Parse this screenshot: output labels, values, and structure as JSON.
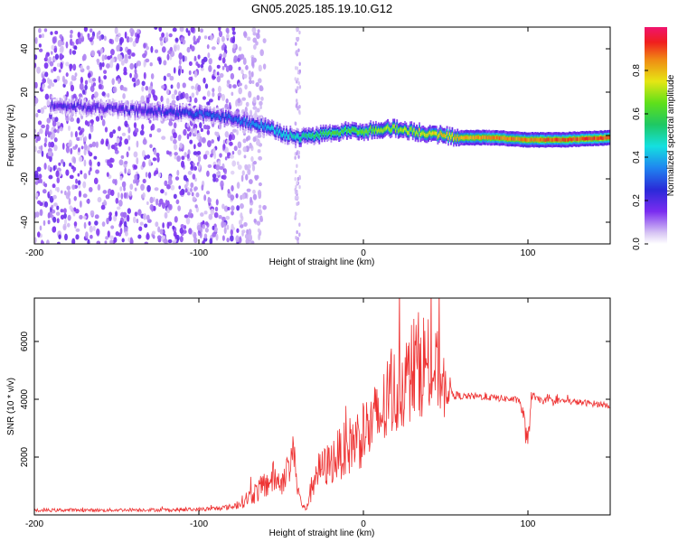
{
  "title": "GN05.2025.185.19.10.G12",
  "colors": {
    "snr_line": "#ee3333",
    "frame": "#000000"
  },
  "chart_data": [
    {
      "type": "heatmap",
      "xlabel": "Height of straight line (km)",
      "ylabel": "Frequency (Hz)",
      "xlim": [
        -200,
        150
      ],
      "ylim": [
        -50,
        50
      ],
      "x_ticks": [
        -200,
        -100,
        0,
        100
      ],
      "y_ticks": [
        -40,
        -20,
        0,
        20,
        40
      ],
      "x_tick_labels": [
        "-200",
        "-100",
        "0",
        "100"
      ],
      "y_tick_labels": [
        "-40",
        "-20",
        "0",
        "20",
        "40"
      ],
      "colorbar": {
        "label": "Normalized spectral amplitude",
        "range": [
          0,
          1
        ],
        "ticks": [
          0.0,
          0.2,
          0.4,
          0.6,
          0.8
        ],
        "tick_labels": [
          "0.0",
          "0.2",
          "0.4",
          "0.6",
          "0.8"
        ]
      },
      "ridge": {
        "description_points_x": [
          -185,
          -150,
          -120,
          -100,
          -80,
          -70,
          -60,
          -50,
          -40,
          -30,
          -20,
          -10,
          0,
          10,
          20,
          30,
          40,
          50,
          60,
          80,
          100,
          120,
          150
        ],
        "frequency_hz": [
          14,
          12,
          11,
          10,
          8,
          6,
          4,
          1,
          -1,
          0,
          1,
          2,
          2,
          3,
          3,
          2,
          1,
          0,
          -1,
          -1,
          -2,
          -2,
          -1
        ],
        "peak_amplitude": [
          0.2,
          0.2,
          0.25,
          0.3,
          0.3,
          0.35,
          0.4,
          0.45,
          0.5,
          0.55,
          0.6,
          0.6,
          0.65,
          0.7,
          0.7,
          0.7,
          0.75,
          0.8,
          0.8,
          0.85,
          0.85,
          0.9,
          0.9
        ]
      },
      "noise_region_x": [
        -200,
        -75
      ],
      "noise_streak_x": -40
    },
    {
      "type": "line",
      "xlabel": "Height of straight line (km)",
      "ylabel": "SNR (10 * v/v)",
      "xlim": [
        -200,
        150
      ],
      "ylim": [
        0,
        7500
      ],
      "x_ticks": [
        -200,
        -100,
        0,
        100
      ],
      "y_ticks": [
        2000,
        4000,
        6000
      ],
      "x_tick_labels": [
        "-200",
        "-100",
        "0",
        "100"
      ],
      "y_tick_labels": [
        "2000",
        "4000",
        "6000"
      ],
      "series": [
        {
          "x": [
            -200,
            -180,
            -160,
            -140,
            -120,
            -100,
            -90,
            -80,
            -75,
            -70,
            -65,
            -60,
            -55,
            -50,
            -45,
            -42,
            -40,
            -37,
            -35,
            -32,
            -30,
            -25,
            -20,
            -15,
            -10,
            -5,
            0,
            5,
            10,
            15,
            20,
            25,
            30,
            35,
            40,
            45,
            50,
            55,
            60,
            70,
            80,
            90,
            95,
            98,
            100,
            102,
            105,
            110,
            120,
            130,
            140,
            150
          ],
          "y": [
            150,
            170,
            160,
            180,
            170,
            190,
            220,
            280,
            400,
            600,
            800,
            1000,
            1300,
            1100,
            1700,
            2300,
            900,
            300,
            200,
            800,
            1400,
            1600,
            1800,
            2100,
            2300,
            2600,
            2800,
            3100,
            3400,
            3900,
            4300,
            4700,
            5000,
            5300,
            5100,
            4900,
            4500,
            4150,
            4100,
            4100,
            4050,
            4000,
            3950,
            3200,
            2200,
            4200,
            4000,
            3950,
            3950,
            3900,
            3850,
            3800
          ],
          "noise_amplitude": [
            60,
            60,
            60,
            60,
            60,
            70,
            80,
            100,
            200,
            300,
            400,
            500,
            600,
            500,
            500,
            700,
            300,
            100,
            100,
            400,
            600,
            700,
            800,
            900,
            1000,
            1100,
            1200,
            1300,
            1400,
            1500,
            1600,
            1700,
            1800,
            1900,
            1800,
            1500,
            800,
            150,
            120,
            120,
            120,
            120,
            120,
            400,
            600,
            200,
            120,
            120,
            110,
            110,
            110,
            110
          ]
        }
      ]
    }
  ]
}
